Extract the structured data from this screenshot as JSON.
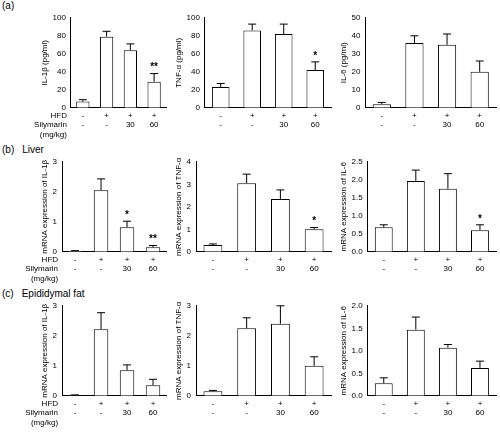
{
  "panels": [
    {
      "label": "(a)"
    },
    {
      "label": "(b)",
      "title": "Liver"
    },
    {
      "label": "(c)",
      "title": "Epididymal fat"
    }
  ],
  "chart_data": [
    {
      "type": "bar",
      "y_label": "IL-1β (pg/ml)",
      "categories": [
        [
          "-",
          "-"
        ],
        [
          "+",
          "-"
        ],
        [
          "+",
          "30"
        ],
        [
          "+",
          "60"
        ]
      ],
      "category_rows": [
        [
          "HFD"
        ],
        [
          "Silymarin",
          "(mg/kg)"
        ]
      ],
      "values": [
        7,
        79,
        64,
        29
      ],
      "errors": [
        2,
        6,
        7,
        9
      ],
      "annotations": [
        null,
        null,
        null,
        "**"
      ],
      "color": "#000000",
      "ylim": [
        0,
        100
      ],
      "yticks": [
        0,
        20,
        40,
        60,
        80,
        100
      ],
      "grid": false
    },
    {
      "type": "bar",
      "y_label": "TNF-α (pg/ml)",
      "categories": [
        [
          "-",
          "-"
        ],
        [
          "+",
          "-"
        ],
        [
          "+",
          "30"
        ],
        [
          "+",
          "60"
        ]
      ],
      "values": [
        23,
        86,
        82,
        42
      ],
      "errors": [
        4,
        7,
        11,
        9
      ],
      "annotations": [
        null,
        null,
        null,
        "*"
      ],
      "color": "#000000",
      "ylim": [
        0,
        100
      ],
      "yticks": [
        0,
        20,
        40,
        60,
        80,
        100
      ],
      "grid": false
    },
    {
      "type": "bar",
      "y_label": "IL-6 (pg/ml)",
      "categories": [
        [
          "-",
          "-"
        ],
        [
          "+",
          "-"
        ],
        [
          "+",
          "30"
        ],
        [
          "+",
          "60"
        ]
      ],
      "values": [
        2,
        36,
        35,
        20
      ],
      "errors": [
        1,
        4,
        6,
        6
      ],
      "annotations": [
        null,
        null,
        null,
        null
      ],
      "color": "#000000",
      "ylim": [
        0,
        50
      ],
      "yticks": [
        0,
        10,
        20,
        30,
        40,
        50
      ],
      "grid": false
    },
    {
      "type": "bar",
      "y_label": "mRNA expression of IL-1β",
      "categories": [
        [
          "-",
          "-"
        ],
        [
          "+",
          "-"
        ],
        [
          "+",
          "30"
        ],
        [
          "+",
          "60"
        ]
      ],
      "category_rows": [
        [
          "HFD"
        ],
        [
          "Silymarin",
          "(mg/kg)"
        ]
      ],
      "values": [
        0.03,
        2.05,
        0.82,
        0.15
      ],
      "errors": [
        0.01,
        0.38,
        0.2,
        0.06
      ],
      "annotations": [
        null,
        null,
        "*",
        "**"
      ],
      "color": "#000000",
      "ylim": [
        0,
        3
      ],
      "yticks": [
        0,
        1,
        2,
        3
      ],
      "grid": false
    },
    {
      "type": "bar",
      "y_label": "mRNA expression of TNF-α",
      "categories": [
        [
          "-",
          "-"
        ],
        [
          "+",
          "-"
        ],
        [
          "+",
          "30"
        ],
        [
          "+",
          "60"
        ]
      ],
      "values": [
        0.3,
        3.05,
        2.35,
        1.0
      ],
      "errors": [
        0.05,
        0.4,
        0.4,
        0.08
      ],
      "annotations": [
        null,
        null,
        null,
        "*"
      ],
      "color": "#000000",
      "ylim": [
        0,
        4
      ],
      "yticks": [
        0,
        1,
        2,
        3,
        4
      ],
      "grid": false
    },
    {
      "type": "bar",
      "y_label": "mRNA expression of IL-6",
      "categories": [
        [
          "-",
          "-"
        ],
        [
          "+",
          "-"
        ],
        [
          "+",
          "30"
        ],
        [
          "+",
          "60"
        ]
      ],
      "values": [
        0.68,
        1.97,
        1.75,
        0.6
      ],
      "errors": [
        0.07,
        0.3,
        0.42,
        0.15
      ],
      "annotations": [
        null,
        null,
        null,
        "*"
      ],
      "color": "#000000",
      "ylim": [
        0,
        2.5
      ],
      "yticks": [
        {
          "value": 0,
          "label": "0.0"
        },
        {
          "value": 0.5,
          "label": "0.5"
        },
        {
          "value": 1,
          "label": "1.0"
        },
        {
          "value": 1.5,
          "label": "1.5"
        },
        {
          "value": 2,
          "label": "2.0"
        },
        {
          "value": 2.5,
          "label": "2.5"
        }
      ],
      "grid": false
    },
    {
      "type": "bar",
      "y_label": "mRNA expression of IL-1β",
      "categories": [
        [
          "-",
          "-"
        ],
        [
          "+",
          "-"
        ],
        [
          "+",
          "30"
        ],
        [
          "+",
          "60"
        ]
      ],
      "category_rows": [
        [
          "HFD"
        ],
        [
          "Silymarin",
          "(mg/kg)"
        ]
      ],
      "values": [
        0.02,
        2.22,
        0.85,
        0.35
      ],
      "errors": [
        0.01,
        0.55,
        0.18,
        0.2
      ],
      "annotations": [
        null,
        null,
        null,
        null
      ],
      "color": "#000000",
      "ylim": [
        0,
        3
      ],
      "yticks": [
        0,
        1,
        2,
        3
      ],
      "grid": false
    },
    {
      "type": "bar",
      "y_label": "mRNA expression of TNF-α",
      "categories": [
        [
          "-",
          "-"
        ],
        [
          "+",
          "-"
        ],
        [
          "+",
          "30"
        ],
        [
          "+",
          "60"
        ]
      ],
      "values": [
        0.15,
        2.25,
        2.4,
        1.0
      ],
      "errors": [
        0.03,
        0.35,
        0.6,
        0.3
      ],
      "annotations": [
        null,
        null,
        null,
        null
      ],
      "color": "#000000",
      "ylim": [
        0,
        3
      ],
      "yticks": [
        0,
        1,
        2,
        3
      ],
      "grid": false
    },
    {
      "type": "bar",
      "y_label": "mRNA expression of IL-6",
      "categories": [
        [
          "-",
          "-"
        ],
        [
          "+",
          "-"
        ],
        [
          "+",
          "30"
        ],
        [
          "+",
          "60"
        ]
      ],
      "values": [
        0.28,
        1.47,
        1.07,
        0.62
      ],
      "errors": [
        0.12,
        0.28,
        0.07,
        0.15
      ],
      "annotations": [
        null,
        null,
        null,
        null
      ],
      "color": "#000000",
      "ylim": [
        0,
        2
      ],
      "yticks": [
        {
          "value": 0,
          "label": "0.0"
        },
        {
          "value": 0.5,
          "label": "0.5"
        },
        {
          "value": 1,
          "label": "1.0"
        },
        {
          "value": 1.5,
          "label": "1.5"
        },
        {
          "value": 2,
          "label": "2.0"
        }
      ],
      "grid": false
    }
  ]
}
